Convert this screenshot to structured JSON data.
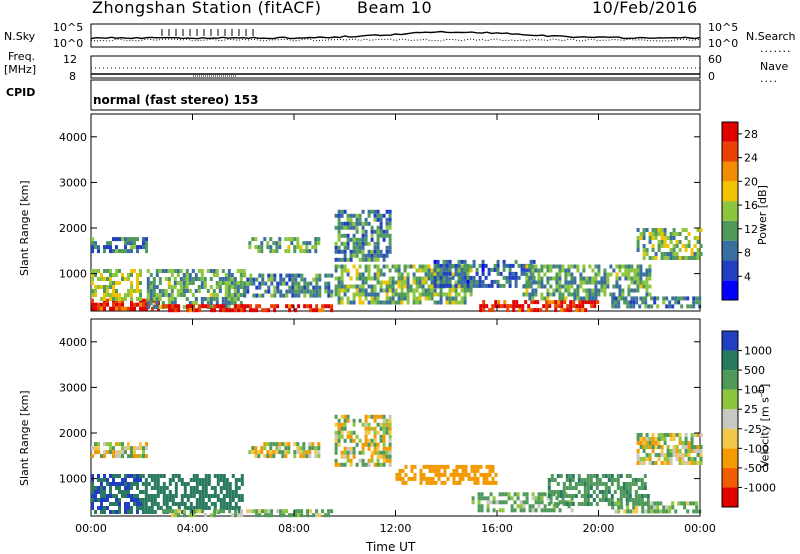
{
  "header": {
    "station_title": "Zhongshan Station (fitACF)",
    "beam": "Beam 10",
    "date": "10/Feb/2016"
  },
  "status_panels": {
    "nsky_label": "N.Sky",
    "nsearch_label": "N.Search",
    "freq_label_line1": "Freq.",
    "freq_label_line2": "[MHz]",
    "nave_label": "Nave",
    "cpid_label": "CPID",
    "cpid_text": "normal (fast stereo) 153",
    "noise_ticks_left": [
      "10^5",
      "10^0"
    ],
    "noise_ticks_right": [
      "10^5",
      "10^0"
    ],
    "freq_ticks": [
      "12",
      "8"
    ],
    "nave_ticks": [
      "60",
      "0"
    ]
  },
  "colors": {
    "power_scale": [
      "#0000ff",
      "#2040c0",
      "#3a6e9e",
      "#4f9a5a",
      "#8cc63f",
      "#f2c300",
      "#f28c00",
      "#e84000",
      "#e00000"
    ],
    "velocity_scale": [
      "#e00000",
      "#f25c00",
      "#f29a00",
      "#f2c84a",
      "#c8c8c0",
      "#8cc63f",
      "#4f9a5a",
      "#2a7a60",
      "#2040c0"
    ]
  },
  "chart_data": [
    {
      "type": "heatmap",
      "title": "",
      "xlabel": "Time UT",
      "ylabel": "Slant Range [km]",
      "x_ticks": [
        "00:00",
        "04:00",
        "08:00",
        "12:00",
        "16:00",
        "20:00",
        "00:00"
      ],
      "y_ticks": [
        1000,
        2000,
        3000,
        4000
      ],
      "ylim": [
        180,
        4500
      ],
      "xlim_hours": [
        0,
        24
      ],
      "colorbar_label": "Power [dB]",
      "colorbar_ticks": [
        "4",
        "8",
        "12",
        "16",
        "20",
        "24",
        "28"
      ],
      "colorbar_range": [
        0,
        30
      ],
      "echo_regions": [
        {
          "t0": 0.0,
          "t1": 2.8,
          "r0": 250,
          "r1": 450,
          "value": 27
        },
        {
          "t0": 0.0,
          "t1": 2.0,
          "r0": 450,
          "r1": 1100,
          "value": 15
        },
        {
          "t0": 0.0,
          "t1": 2.2,
          "r0": 1450,
          "r1": 1800,
          "value": 9
        },
        {
          "t0": 2.2,
          "t1": 6.0,
          "r0": 300,
          "r1": 1100,
          "value": 12
        },
        {
          "t0": 2.8,
          "t1": 9.5,
          "r0": 220,
          "r1": 330,
          "value": 28
        },
        {
          "t0": 6.0,
          "t1": 9.5,
          "r0": 500,
          "r1": 1000,
          "value": 10
        },
        {
          "t0": 6.2,
          "t1": 9.0,
          "r0": 1500,
          "r1": 1800,
          "value": 12
        },
        {
          "t0": 9.6,
          "t1": 11.8,
          "r0": 1300,
          "r1": 2400,
          "value": 10
        },
        {
          "t0": 9.6,
          "t1": 15.0,
          "r0": 400,
          "r1": 1200,
          "value": 13
        },
        {
          "t0": 13.5,
          "t1": 17.5,
          "r0": 700,
          "r1": 1300,
          "value": 8
        },
        {
          "t0": 15.3,
          "t1": 20.0,
          "r0": 220,
          "r1": 420,
          "value": 27
        },
        {
          "t0": 17.0,
          "t1": 22.0,
          "r0": 450,
          "r1": 1200,
          "value": 12
        },
        {
          "t0": 21.5,
          "t1": 24.0,
          "r0": 1300,
          "r1": 2000,
          "value": 14
        },
        {
          "t0": 20.5,
          "t1": 24.0,
          "r0": 250,
          "r1": 500,
          "value": 10
        }
      ]
    },
    {
      "type": "heatmap",
      "title": "",
      "xlabel": "Time UT",
      "ylabel": "Slant Range [km]",
      "x_ticks": [
        "00:00",
        "04:00",
        "08:00",
        "12:00",
        "16:00",
        "20:00",
        "00:00"
      ],
      "y_ticks": [
        1000,
        2000,
        3000,
        4000
      ],
      "ylim": [
        180,
        4500
      ],
      "xlim_hours": [
        0,
        24
      ],
      "colorbar_label": "Velocity [m s^-1]",
      "colorbar_ticks": [
        "-1000",
        "-500",
        "-100",
        "-25",
        "25",
        "100",
        "500",
        "1000"
      ],
      "echo_regions": [
        {
          "t0": 0.0,
          "t1": 2.0,
          "r0": 300,
          "r1": 1100,
          "value": 1000
        },
        {
          "t0": 0.0,
          "t1": 2.2,
          "r0": 1450,
          "r1": 1800,
          "value": 0
        },
        {
          "t0": 2.0,
          "t1": 6.0,
          "r0": 300,
          "r1": 1100,
          "value": 800
        },
        {
          "t0": 2.8,
          "t1": 9.5,
          "r0": 220,
          "r1": 330,
          "value": 150
        },
        {
          "t0": 6.2,
          "t1": 9.0,
          "r0": 1500,
          "r1": 1800,
          "value": 0
        },
        {
          "t0": 9.6,
          "t1": 11.8,
          "r0": 1300,
          "r1": 2400,
          "value": 0
        },
        {
          "t0": 12.0,
          "t1": 16.0,
          "r0": 900,
          "r1": 1300,
          "value": -300
        },
        {
          "t0": 15.0,
          "t1": 19.0,
          "r0": 300,
          "r1": 700,
          "value": 200
        },
        {
          "t0": 18.0,
          "t1": 22.0,
          "r0": 450,
          "r1": 1100,
          "value": 400
        },
        {
          "t0": 21.5,
          "t1": 24.0,
          "r0": 1300,
          "r1": 2000,
          "value": 0
        },
        {
          "t0": 20.5,
          "t1": 24.0,
          "r0": 250,
          "r1": 500,
          "value": 150
        }
      ]
    }
  ]
}
